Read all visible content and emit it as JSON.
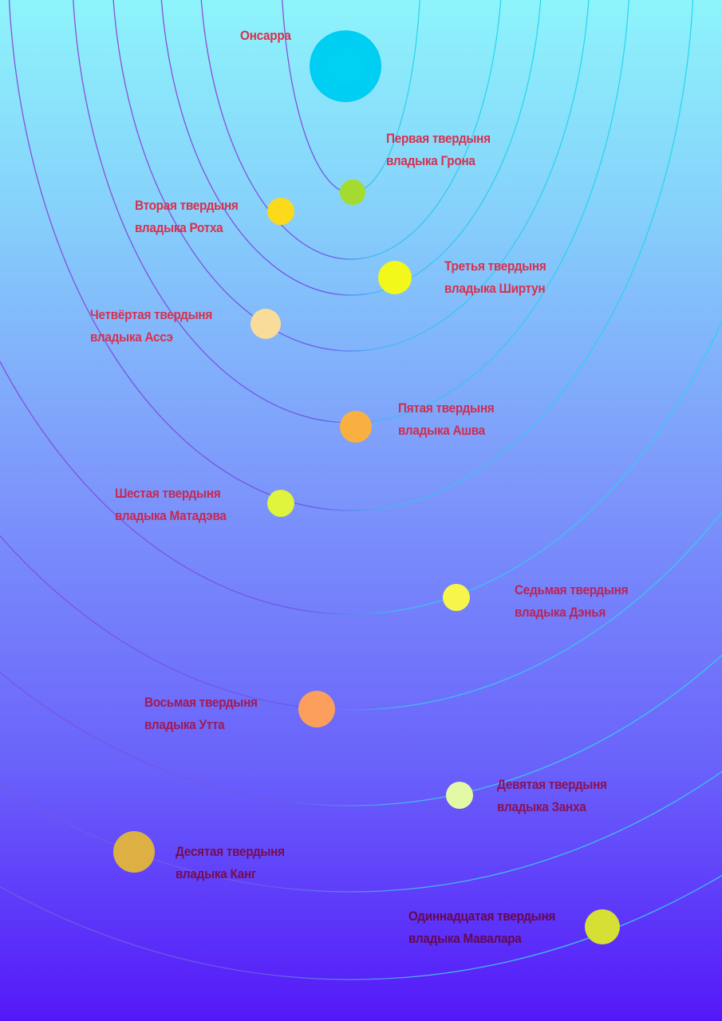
{
  "star": {
    "name": "Онсарра",
    "color": "#00d0f2"
  },
  "planets": [
    {
      "line1": "Первая твердыня",
      "line2": "владыка Грона",
      "color": "#a3dc2f",
      "label_color": "#d8304e"
    },
    {
      "line1": "Вторая твердыня",
      "line2": "владыка Ротха",
      "color": "#fbd91b",
      "label_color": "#d8304e"
    },
    {
      "line1": "Третья твердыня",
      "line2": "владыка Ширтун",
      "color": "#f2f81a",
      "label_color": "#d8304e"
    },
    {
      "line1": "Четвёртая твердыня",
      "line2": "владыка Ассэ",
      "color": "#fadc9a",
      "label_color": "#d8304e"
    },
    {
      "line1": "Пятая твердыня",
      "line2": "владыка Ашва",
      "color": "#f9b040",
      "label_color": "#d02c50"
    },
    {
      "line1": "Шестая твердыня",
      "line2": "владыка Матадэва",
      "color": "#dff43c",
      "label_color": "#c82852"
    },
    {
      "line1": "Седьмая твердыня",
      "line2": "владыка Дэнья",
      "color": "#f7f54a",
      "label_color": "#b82458"
    },
    {
      "line1": "Восьмая твердыня",
      "line2": "владыка Утта",
      "color": "#fc9f5d",
      "label_color": "#a01a58"
    },
    {
      "line1": "Девятая твердыня",
      "line2": "владыка Занха",
      "color": "#e4f9a6",
      "label_color": "#8a1256"
    },
    {
      "line1": "Десятая твердыня",
      "line2": "владыка Канг",
      "color": "#dcb042",
      "label_color": "#760c54"
    },
    {
      "line1": "Одиннадцатая твердыня",
      "line2": "владыка Мавалара",
      "color": "#d6e034",
      "label_color": "#640850"
    }
  ]
}
